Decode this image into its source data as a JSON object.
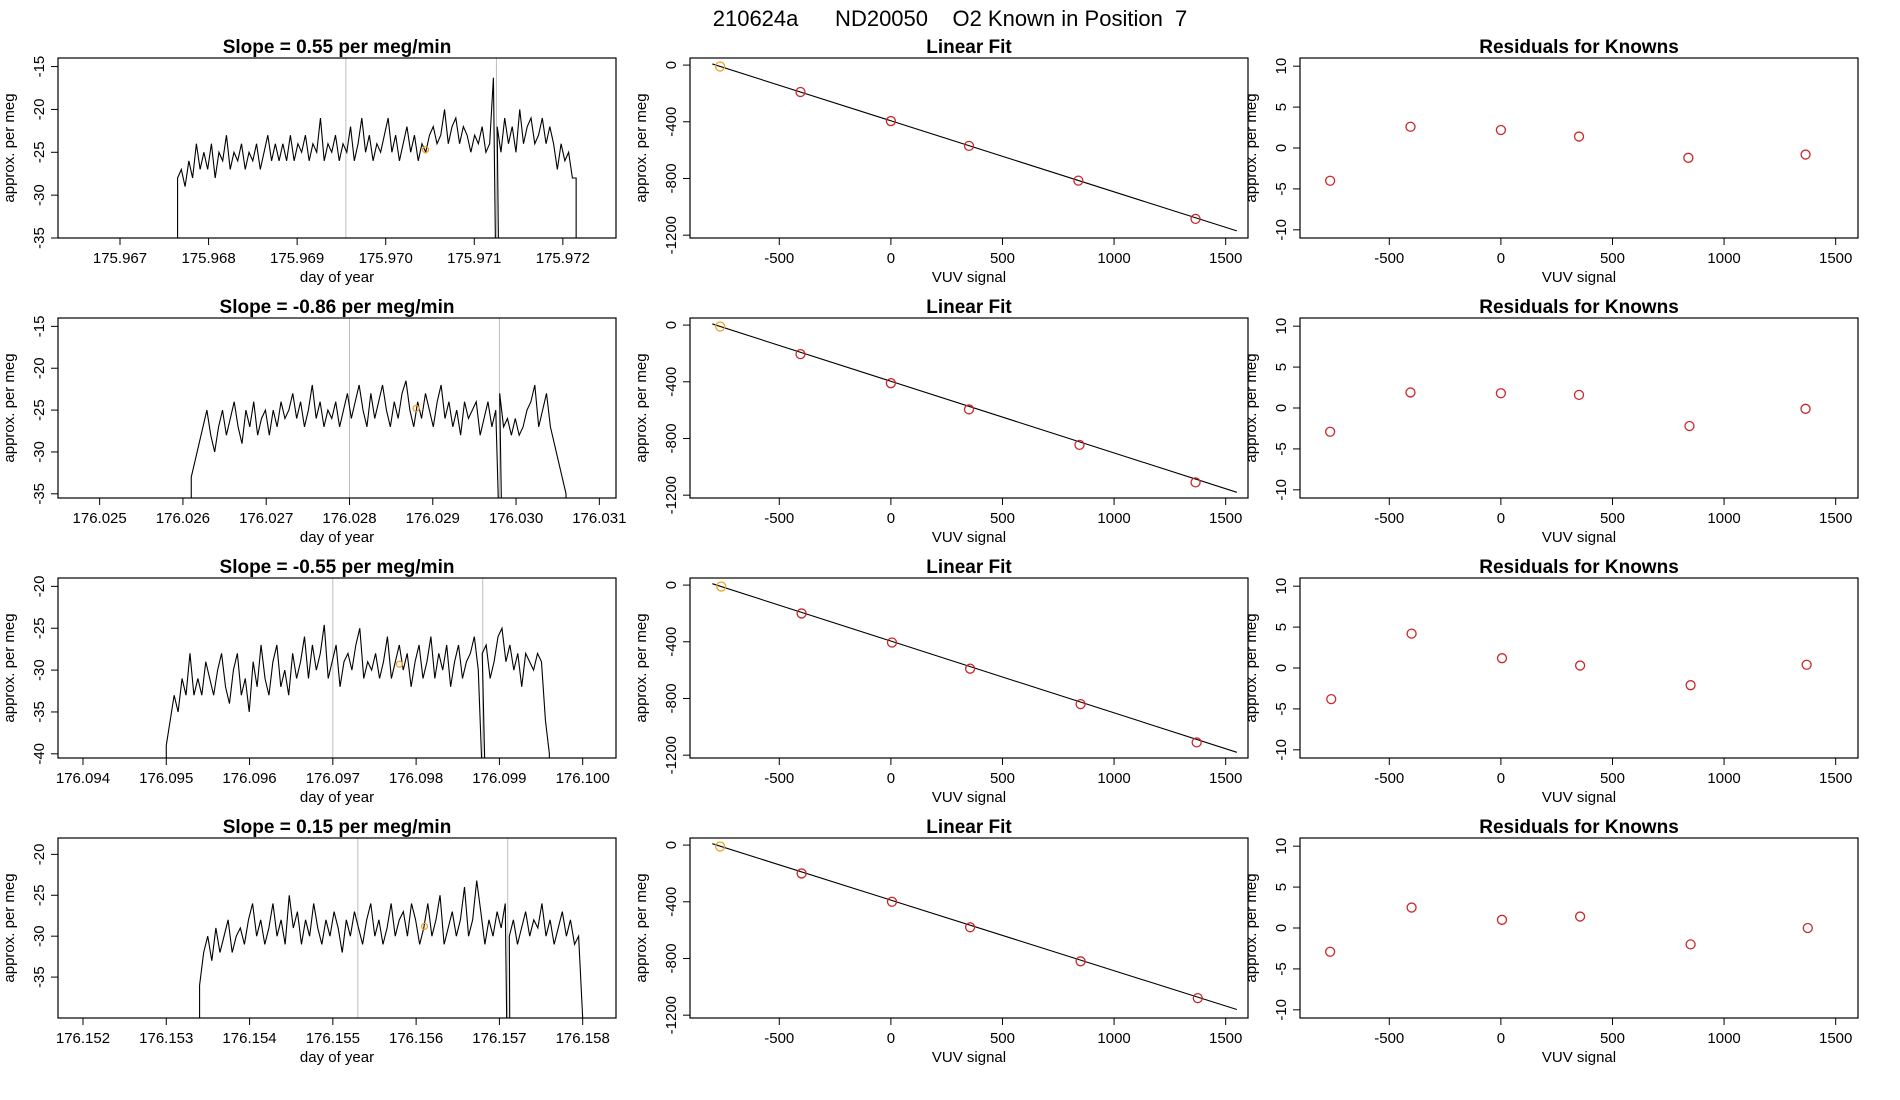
{
  "page_title": "210624a      ND20050    O2 Known in Position  7",
  "colors": {
    "trace": "#000000",
    "vline": "#bebebe",
    "point_red": "#cd2626",
    "point_orange": "#f0a020",
    "fit_line": "#000000"
  },
  "chart_data": [
    {
      "type": "line",
      "row": 1,
      "panel": "timeseries",
      "title": "Slope =  0.55  per meg/min",
      "xlabel": "day of year",
      "ylabel": "approx. per meg",
      "xlim": [
        175.9663,
        175.9726
      ],
      "ylim": [
        -35,
        -14
      ],
      "xticks": [
        "175.967",
        "175.968",
        "175.969",
        "175.970",
        "175.971",
        "175.972"
      ],
      "yticks": [
        "-35",
        "-30",
        "-25",
        "-20",
        "-15"
      ],
      "grid": false,
      "vlines": [
        175.96955,
        175.97125
      ],
      "trace_x": [
        175.96765,
        175.97215
      ],
      "trace_y_range": [
        -35,
        -16.3
      ],
      "highlight": {
        "x": 175.97045,
        "y": -24.7
      },
      "trace": [
        -28,
        -27,
        -29,
        -26,
        -28,
        -24,
        -27,
        -25,
        -27,
        -24,
        -28,
        -25,
        -26,
        -23,
        -27,
        -25,
        -26,
        -24,
        -27,
        -25,
        -26,
        -24,
        -27,
        -25,
        -23,
        -26,
        -24,
        -26,
        -24,
        -26,
        -23,
        -26,
        -24,
        -25,
        -23,
        -26,
        -24,
        -25,
        -21,
        -26,
        -24,
        -25,
        -23,
        -26,
        -24,
        -25,
        -22,
        -26,
        -24,
        -21,
        -25,
        -23,
        -26,
        -24,
        -25,
        -23,
        -21,
        -25,
        -23,
        -26,
        -24,
        -22,
        -25,
        -23,
        -26,
        -24,
        -25,
        -23,
        -22,
        -24,
        -23,
        -20,
        -24,
        -22,
        -21,
        -24,
        -22,
        -23,
        -25,
        -23,
        -24,
        -22,
        -25,
        -24,
        -16.3,
        -22,
        -25,
        -21,
        -24,
        -22,
        -25,
        -20,
        -24,
        -22,
        -21,
        -24,
        -23,
        -21,
        -24,
        -22,
        -24,
        -27,
        -24,
        -26,
        -25,
        -28,
        -28
      ]
    },
    {
      "type": "scatter",
      "row": 1,
      "panel": "linear_fit",
      "title": "Linear Fit",
      "xlabel": "VUV signal",
      "ylabel": "approx. per meg",
      "xlim": [
        -900,
        1600
      ],
      "ylim": [
        -1220,
        50
      ],
      "xticks": [
        "-500",
        "0",
        "500",
        "1000",
        "1500"
      ],
      "yticks": [
        "-1200",
        "-800",
        "-400",
        "0"
      ],
      "points": [
        {
          "x": -765,
          "y": -10
        },
        {
          "x": -405,
          "y": -190
        },
        {
          "x": 0,
          "y": -395
        },
        {
          "x": 350,
          "y": -570
        },
        {
          "x": 840,
          "y": -815
        },
        {
          "x": 1365,
          "y": -1085
        }
      ],
      "fit_line": {
        "x": [
          -800,
          1550
        ],
        "y": [
          8,
          -1170
        ]
      },
      "highlight_index": 0
    },
    {
      "type": "scatter",
      "row": 1,
      "panel": "residuals",
      "title": "Residuals for Knowns",
      "xlabel": "VUV signal",
      "ylabel": "approx. per meg",
      "xlim": [
        -900,
        1600
      ],
      "ylim": [
        -11,
        11
      ],
      "xticks": [
        "-500",
        "0",
        "500",
        "1000",
        "1500"
      ],
      "yticks": [
        "-10",
        "-5",
        "0",
        "5",
        "10"
      ],
      "points": [
        {
          "x": -765,
          "y": -4
        },
        {
          "x": -405,
          "y": 2.6
        },
        {
          "x": 0,
          "y": 2.2
        },
        {
          "x": 350,
          "y": 1.4
        },
        {
          "x": 840,
          "y": -1.2
        },
        {
          "x": 1365,
          "y": -0.8
        }
      ]
    },
    {
      "type": "line",
      "row": 2,
      "panel": "timeseries",
      "title": "Slope =  -0.86  per meg/min",
      "xlabel": "day of year",
      "ylabel": "approx. per meg",
      "xlim": [
        176.0245,
        176.0312
      ],
      "ylim": [
        -35.5,
        -14
      ],
      "xticks": [
        "176.025",
        "176.026",
        "176.027",
        "176.028",
        "176.029",
        "176.030",
        "176.031"
      ],
      "yticks": [
        "-35",
        "-30",
        "-25",
        "-20",
        "-15"
      ],
      "grid": false,
      "vlines": [
        176.028,
        176.0298
      ],
      "trace_x": [
        176.0261,
        176.0306
      ],
      "trace_y_range": [
        -35.5,
        -21.5
      ],
      "highlight": {
        "x": 176.0288,
        "y": -24.8
      },
      "trace": [
        -33,
        -31,
        -29,
        -27,
        -25,
        -28,
        -30,
        -27,
        -25,
        -28,
        -26,
        -24,
        -27,
        -29,
        -25,
        -27,
        -24,
        -28,
        -26,
        -25,
        -28,
        -25,
        -27,
        -24,
        -26,
        -25,
        -23,
        -26,
        -24,
        -27,
        -25,
        -22,
        -26,
        -24,
        -27,
        -25,
        -26,
        -24,
        -27,
        -25,
        -23,
        -26,
        -24,
        -22,
        -25,
        -27,
        -23,
        -26,
        -24,
        -22,
        -25,
        -27,
        -24,
        -26,
        -23,
        -21.5,
        -25,
        -27,
        -24,
        -26,
        -23,
        -25,
        -27,
        -24,
        -22,
        -26,
        -24,
        -27,
        -25,
        -28,
        -24,
        -26,
        -25,
        -24,
        -28,
        -26,
        -24,
        -27,
        -25,
        -23,
        -27,
        -26,
        -28,
        -26,
        -28,
        -27,
        -25,
        -24,
        -22,
        -27,
        -25,
        -23,
        -27,
        -29,
        -31,
        -33,
        -35
      ]
    },
    {
      "type": "scatter",
      "row": 2,
      "panel": "linear_fit",
      "title": "Linear Fit",
      "xlabel": "VUV signal",
      "ylabel": "approx. per meg",
      "xlim": [
        -900,
        1600
      ],
      "ylim": [
        -1220,
        50
      ],
      "xticks": [
        "-500",
        "0",
        "500",
        "1000",
        "1500"
      ],
      "yticks": [
        "-1200",
        "-800",
        "-400",
        "0"
      ],
      "points": [
        {
          "x": -765,
          "y": -10
        },
        {
          "x": -405,
          "y": -205
        },
        {
          "x": 0,
          "y": -410
        },
        {
          "x": 350,
          "y": -595
        },
        {
          "x": 845,
          "y": -845
        },
        {
          "x": 1365,
          "y": -1110
        }
      ],
      "fit_line": {
        "x": [
          -800,
          1550
        ],
        "y": [
          8,
          -1180
        ]
      },
      "highlight_index": 0
    },
    {
      "type": "scatter",
      "row": 2,
      "panel": "residuals",
      "title": "Residuals for Knowns",
      "xlabel": "VUV signal",
      "ylabel": "approx. per meg",
      "xlim": [
        -900,
        1600
      ],
      "ylim": [
        -11,
        11
      ],
      "xticks": [
        "-500",
        "0",
        "500",
        "1000",
        "1500"
      ],
      "yticks": [
        "-10",
        "-5",
        "0",
        "5",
        "10"
      ],
      "points": [
        {
          "x": -765,
          "y": -2.9
        },
        {
          "x": -405,
          "y": 1.9
        },
        {
          "x": 0,
          "y": 1.8
        },
        {
          "x": 350,
          "y": 1.6
        },
        {
          "x": 845,
          "y": -2.2
        },
        {
          "x": 1365,
          "y": -0.1
        }
      ]
    },
    {
      "type": "line",
      "row": 3,
      "panel": "timeseries",
      "title": "Slope =  -0.55  per meg/min",
      "xlabel": "day of year",
      "ylabel": "approx. per meg",
      "xlim": [
        176.0937,
        176.1004
      ],
      "ylim": [
        -40.5,
        -19
      ],
      "xticks": [
        "176.094",
        "176.095",
        "176.096",
        "176.097",
        "176.098",
        "176.099",
        "176.100"
      ],
      "yticks": [
        "-40",
        "-35",
        "-30",
        "-25",
        "-20"
      ],
      "grid": false,
      "vlines": [
        176.097,
        176.0988
      ],
      "trace_x": [
        176.095,
        176.0996
      ],
      "trace_y_range": [
        -40.5,
        -24.6
      ],
      "highlight": {
        "x": 176.0978,
        "y": -29.3
      },
      "trace": [
        -39,
        -36,
        -33,
        -35,
        -31,
        -33,
        -28,
        -33,
        -31,
        -33,
        -29,
        -31,
        -33,
        -30,
        -28,
        -32,
        -34,
        -30,
        -28,
        -33,
        -31,
        -35,
        -29,
        -32,
        -27,
        -31,
        -33,
        -29,
        -27,
        -32,
        -30,
        -33,
        -28,
        -31,
        -29,
        -26,
        -31,
        -27,
        -30,
        -28,
        -24.6,
        -31,
        -29,
        -27,
        -32,
        -29,
        -28,
        -30,
        -27,
        -25,
        -31,
        -29,
        -30,
        -28,
        -31,
        -29,
        -26,
        -31,
        -29,
        -27,
        -30,
        -28,
        -32,
        -29,
        -27,
        -31,
        -29,
        -26,
        -31,
        -28,
        -30,
        -27,
        -32,
        -29,
        -27,
        -31,
        -29,
        -28,
        -26,
        -30,
        -28,
        -27,
        -31,
        -29,
        -26,
        -25,
        -29,
        -27,
        -30,
        -28,
        -32,
        -28,
        -29,
        -30,
        -28,
        -29,
        -36,
        -40
      ]
    },
    {
      "type": "scatter",
      "row": 3,
      "panel": "linear_fit",
      "title": "Linear Fit",
      "xlabel": "VUV signal",
      "ylabel": "approx. per meg",
      "xlim": [
        -900,
        1600
      ],
      "ylim": [
        -1220,
        50
      ],
      "xticks": [
        "-500",
        "0",
        "500",
        "1000",
        "1500"
      ],
      "yticks": [
        "-1200",
        "-800",
        "-400",
        "0"
      ],
      "points": [
        {
          "x": -760,
          "y": -10
        },
        {
          "x": -400,
          "y": -200
        },
        {
          "x": 5,
          "y": -405
        },
        {
          "x": 355,
          "y": -590
        },
        {
          "x": 850,
          "y": -840
        },
        {
          "x": 1370,
          "y": -1110
        }
      ],
      "fit_line": {
        "x": [
          -800,
          1550
        ],
        "y": [
          10,
          -1180
        ]
      },
      "highlight_index": 0
    },
    {
      "type": "scatter",
      "row": 3,
      "panel": "residuals",
      "title": "Residuals for Knowns",
      "xlabel": "VUV signal",
      "ylabel": "approx. per meg",
      "xlim": [
        -900,
        1600
      ],
      "ylim": [
        -11,
        11
      ],
      "xticks": [
        "-500",
        "0",
        "500",
        "1000",
        "1500"
      ],
      "yticks": [
        "-10",
        "-5",
        "0",
        "5",
        "10"
      ],
      "points": [
        {
          "x": -760,
          "y": -3.8
        },
        {
          "x": -400,
          "y": 4.2
        },
        {
          "x": 5,
          "y": 1.2
        },
        {
          "x": 355,
          "y": 0.3
        },
        {
          "x": 850,
          "y": -2.1
        },
        {
          "x": 1370,
          "y": 0.4
        }
      ]
    },
    {
      "type": "line",
      "row": 4,
      "panel": "timeseries",
      "title": "Slope =  0.15  per meg/min",
      "xlabel": "day of year",
      "ylabel": "approx. per meg",
      "xlim": [
        176.1517,
        176.1584
      ],
      "ylim": [
        -40,
        -18
      ],
      "xticks": [
        "176.152",
        "176.153",
        "176.154",
        "176.155",
        "176.156",
        "176.157",
        "176.158"
      ],
      "yticks": [
        "-35",
        "-30",
        "-25",
        "-20"
      ],
      "grid": false,
      "vlines": [
        176.1553,
        176.1571
      ],
      "trace_x": [
        176.1534,
        176.158
      ],
      "trace_y_range": [
        -40,
        -23.2
      ],
      "highlight": {
        "x": 176.1561,
        "y": -28.8
      },
      "trace": [
        -36,
        -32,
        -30,
        -33,
        -29,
        -32,
        -30,
        -28,
        -32,
        -30,
        -29,
        -31,
        -28,
        -26,
        -30,
        -28,
        -31,
        -29,
        -26,
        -30,
        -28,
        -31,
        -25,
        -29,
        -27,
        -31,
        -28,
        -30,
        -26,
        -29,
        -31,
        -28,
        -30,
        -27,
        -29,
        -32,
        -28,
        -30,
        -27,
        -29,
        -31,
        -28,
        -26,
        -30,
        -28,
        -31,
        -29,
        -26,
        -30,
        -28,
        -27,
        -30,
        -26,
        -28,
        -31,
        -29,
        -26,
        -30,
        -28,
        -25,
        -31,
        -29,
        -27,
        -30,
        -28,
        -24,
        -30,
        -28,
        -23.2,
        -27,
        -31,
        -28,
        -30,
        -27,
        -29,
        -26,
        -30,
        -28,
        -31,
        -29,
        -27,
        -30,
        -28,
        -29,
        -26,
        -30,
        -28,
        -31,
        -29,
        -27,
        -30,
        -28,
        -31,
        -30,
        -40
      ]
    },
    {
      "type": "scatter",
      "row": 4,
      "panel": "linear_fit",
      "title": "Linear Fit",
      "xlabel": "VUV signal",
      "ylabel": "approx. per meg",
      "xlim": [
        -900,
        1600
      ],
      "ylim": [
        -1220,
        50
      ],
      "xticks": [
        "-500",
        "0",
        "500",
        "1000",
        "1500"
      ],
      "yticks": [
        "-1200",
        "-800",
        "-400",
        "0"
      ],
      "points": [
        {
          "x": -765,
          "y": -10
        },
        {
          "x": -400,
          "y": -200
        },
        {
          "x": 5,
          "y": -400
        },
        {
          "x": 355,
          "y": -580
        },
        {
          "x": 850,
          "y": -820
        },
        {
          "x": 1375,
          "y": -1080
        }
      ],
      "fit_line": {
        "x": [
          -800,
          1550
        ],
        "y": [
          10,
          -1160
        ]
      },
      "highlight_index": 0
    },
    {
      "type": "scatter",
      "row": 4,
      "panel": "residuals",
      "title": "Residuals for Knowns",
      "xlabel": "VUV signal",
      "ylabel": "approx. per meg",
      "xlim": [
        -900,
        1600
      ],
      "ylim": [
        -11,
        11
      ],
      "xticks": [
        "-500",
        "0",
        "500",
        "1000",
        "1500"
      ],
      "yticks": [
        "-10",
        "-5",
        "0",
        "5",
        "10"
      ],
      "points": [
        {
          "x": -765,
          "y": -2.9
        },
        {
          "x": -400,
          "y": 2.5
        },
        {
          "x": 5,
          "y": 1.0
        },
        {
          "x": 355,
          "y": 1.4
        },
        {
          "x": 850,
          "y": -2.0
        },
        {
          "x": 1375,
          "y": 0.0
        }
      ]
    }
  ]
}
